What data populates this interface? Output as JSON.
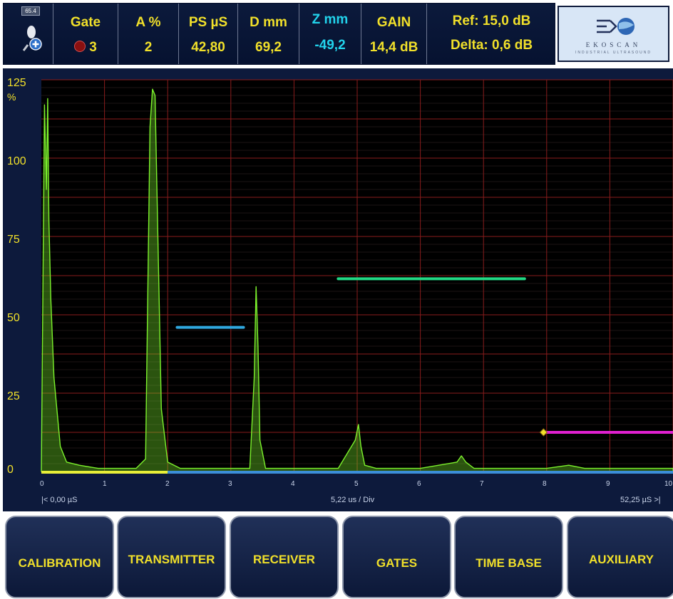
{
  "header": {
    "zoom_value": "65.4",
    "gate": {
      "label": "Gate",
      "value": "3",
      "indicator_color": "#8a1010"
    },
    "amplitude": {
      "label": "A %",
      "value": "2"
    },
    "ps": {
      "label": "PS µS",
      "value": "42,80"
    },
    "depth": {
      "label": "D mm",
      "value": "69,2"
    },
    "z": {
      "label": "Z mm",
      "value": "-49,2"
    },
    "gain": {
      "label": "GAIN",
      "value": "14,4 dB"
    },
    "ref": "Ref: 15,0 dB",
    "delta": "Delta: 0,6 dB",
    "logo": {
      "text": "EKOSCAN",
      "subtext": "INDUSTRIAL ULTRASOUND",
      "icon": "ekoscan-logo-icon"
    }
  },
  "plot": {
    "y_unit": "%",
    "y_ticks": [
      "125",
      "100",
      "75",
      "50",
      "25",
      "0"
    ],
    "x_ticks": [
      "0",
      "1",
      "2",
      "3",
      "4",
      "5",
      "6",
      "7",
      "8",
      "9",
      "10"
    ],
    "x_start": "|< 0,00 µS",
    "x_scale": "5,22 us / Div",
    "x_end": "52,25 µS  >|",
    "colors": {
      "signal": "#7cf22c",
      "grid": "#8a1c1c",
      "gate1": "#2fa8df",
      "gate2": "#22d884",
      "gate3": "#e020d0",
      "marker": "#f1e02a",
      "background": "#000000"
    }
  },
  "chart_data": {
    "type": "line",
    "xlabel": "5,22 us / Div",
    "ylabel": "%",
    "xlim": [
      0,
      10
    ],
    "ylim": [
      0,
      125
    ],
    "x": [
      0.0,
      0.05,
      0.08,
      0.1,
      0.12,
      0.15,
      0.2,
      0.3,
      0.4,
      0.6,
      0.9,
      1.2,
      1.5,
      1.65,
      1.72,
      1.76,
      1.8,
      1.85,
      1.9,
      2.0,
      2.2,
      2.6,
      3.0,
      3.3,
      3.37,
      3.4,
      3.43,
      3.46,
      3.55,
      3.8,
      4.2,
      4.7,
      4.97,
      5.02,
      5.06,
      5.12,
      5.3,
      6.0,
      6.58,
      6.65,
      6.72,
      6.85,
      7.4,
      8.0,
      8.35,
      8.6,
      9.3,
      10.0
    ],
    "y": [
      0,
      117,
      90,
      119,
      80,
      55,
      30,
      8,
      3,
      2,
      1,
      1,
      1,
      4,
      110,
      122,
      120,
      70,
      20,
      3,
      1,
      1,
      1,
      1,
      30,
      59,
      40,
      10,
      1,
      1,
      1,
      1,
      10,
      15,
      8,
      2,
      1,
      1,
      3,
      5,
      3,
      1,
      1,
      1,
      2,
      1,
      1,
      1
    ],
    "gates": [
      {
        "name": "1",
        "x_start": 2.15,
        "x_end": 3.2,
        "level": 46
      },
      {
        "name": "2",
        "x_start": 4.7,
        "x_end": 7.65,
        "level": 61.5
      },
      {
        "name": "3",
        "x_start": 7.95,
        "x_end": 10.0,
        "level": 12.5
      }
    ],
    "grid": true
  },
  "buttons": [
    {
      "label": "CALIBRATION"
    },
    {
      "label": "TRANSMITTER"
    },
    {
      "label": "RECEIVER"
    },
    {
      "label": "GATES"
    },
    {
      "label": "TIME BASE"
    },
    {
      "label": "AUXILIARY"
    }
  ]
}
